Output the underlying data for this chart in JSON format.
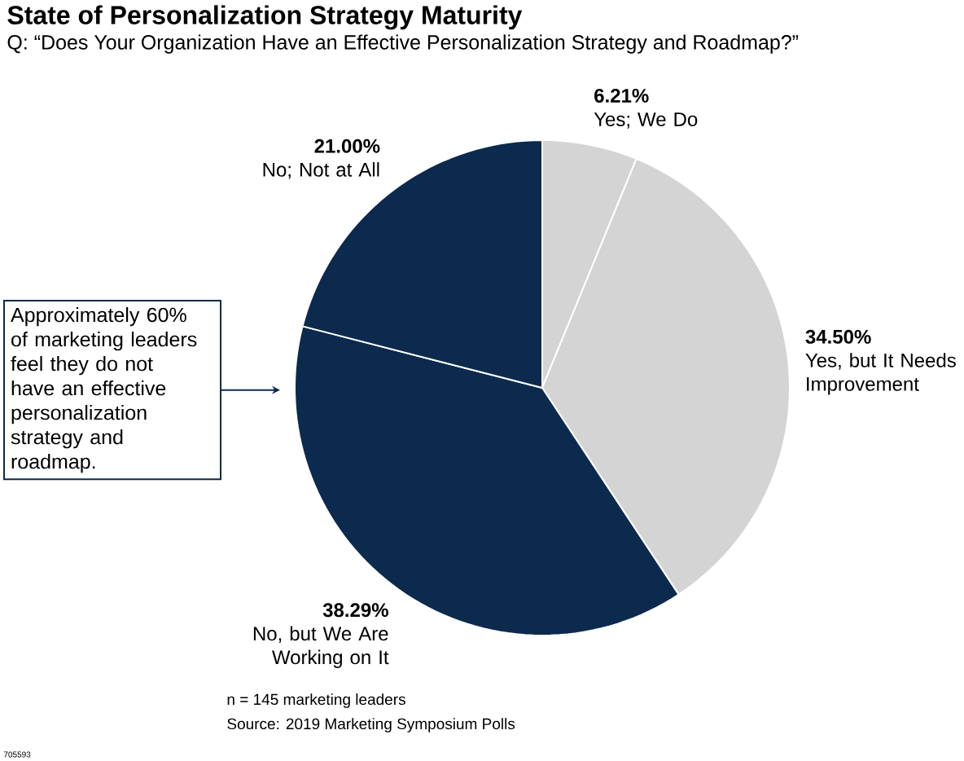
{
  "chart_data": {
    "type": "pie",
    "title": "State of Personalization Strategy Maturity",
    "subtitle": "Q: “Does Your Organization Have an Effective Personalization Strategy and Roadmap?”",
    "categories": [
      "Yes; We Do",
      "Yes, but It Needs Improvement",
      "No, but We Are Working on It",
      "No; Not at All"
    ],
    "values": [
      6.21,
      34.5,
      38.29,
      21.0
    ],
    "colors": [
      "#d4d4d4",
      "#d4d4d4",
      "#0c2a4e",
      "#0c2a4e"
    ],
    "value_labels": [
      "6.21%",
      "34.50%",
      "38.29%",
      "21.00%"
    ],
    "annotations": [
      "Approximately 60% of marketing leaders feel they do not have an effective personalization strategy and roadmap.",
      "n = 145 marketing leaders",
      "Source: 2019 Marketing Symposium Polls",
      "705593"
    ]
  }
}
